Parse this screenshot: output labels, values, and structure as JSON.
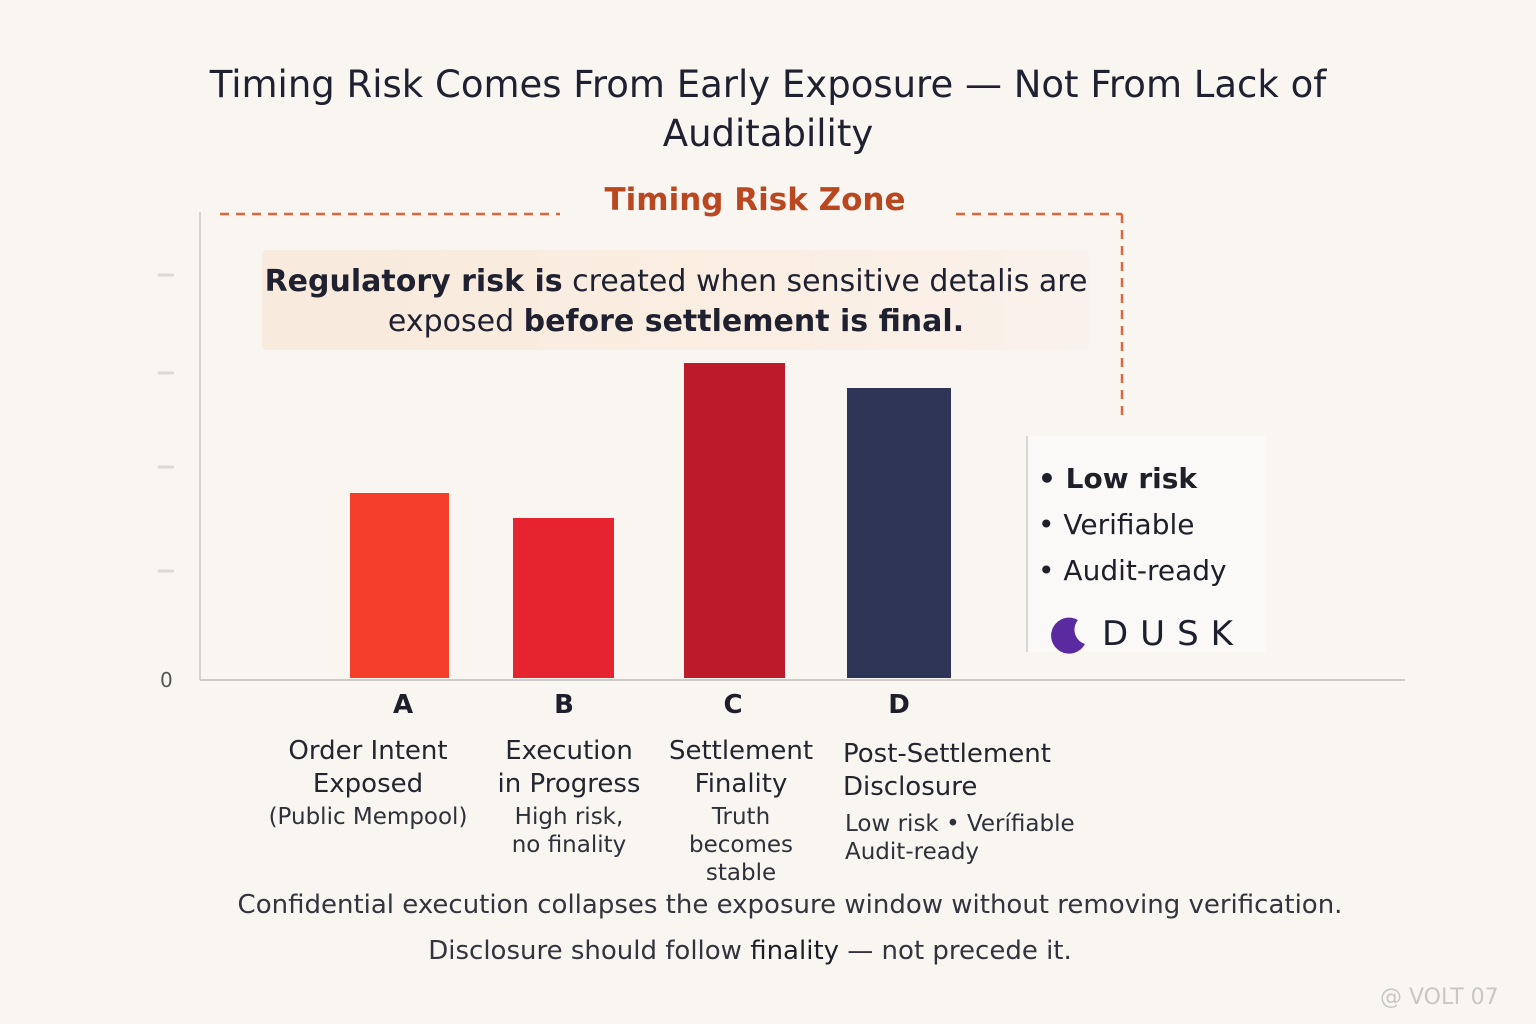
{
  "title": "Timing Risk Comes From Early Exposure — Not From Lack of Auditability",
  "zone_label": "Timing Risk Zone",
  "callout": {
    "part1_bold": "Regulatory risk is",
    "part2": " created when sensitive detalis are exposed ",
    "part3_bold": "before settlement is final."
  },
  "side_box": {
    "bullets": [
      "• Low risk",
      "• Verifiable",
      "• Audit-ready"
    ],
    "logo_text": "DUSK"
  },
  "chart_data": {
    "type": "bar",
    "categories": [
      "A",
      "B",
      "C",
      "D"
    ],
    "values": [
      37,
      32,
      63,
      58
    ],
    "colors": [
      "#f63f2b",
      "#e5242f",
      "#bd1a2b",
      "#2e3557"
    ],
    "ylim": [
      0,
      100
    ],
    "zero_label": "0",
    "stage_labels": [
      {
        "title": "Order Intent Exposed",
        "sub": "(Public Mempool)"
      },
      {
        "title": "Execution in Progress",
        "sub": "High risk, no finality"
      },
      {
        "title": "Settlement Finality",
        "sub": "Truth becomes stable"
      },
      {
        "title": "Post-Settlement Disclosure",
        "sub": "Low risk • Verífiable Audit-ready"
      }
    ]
  },
  "footer": {
    "line1": "Confidential execution collapses the exposure window without removing verification.",
    "line2_a": "Disclosure should follow ",
    "line2_b": "finality",
    "line2_c": " — not precede it."
  },
  "watermark": "@ VOLT 07",
  "accent_color": "#e0663c"
}
